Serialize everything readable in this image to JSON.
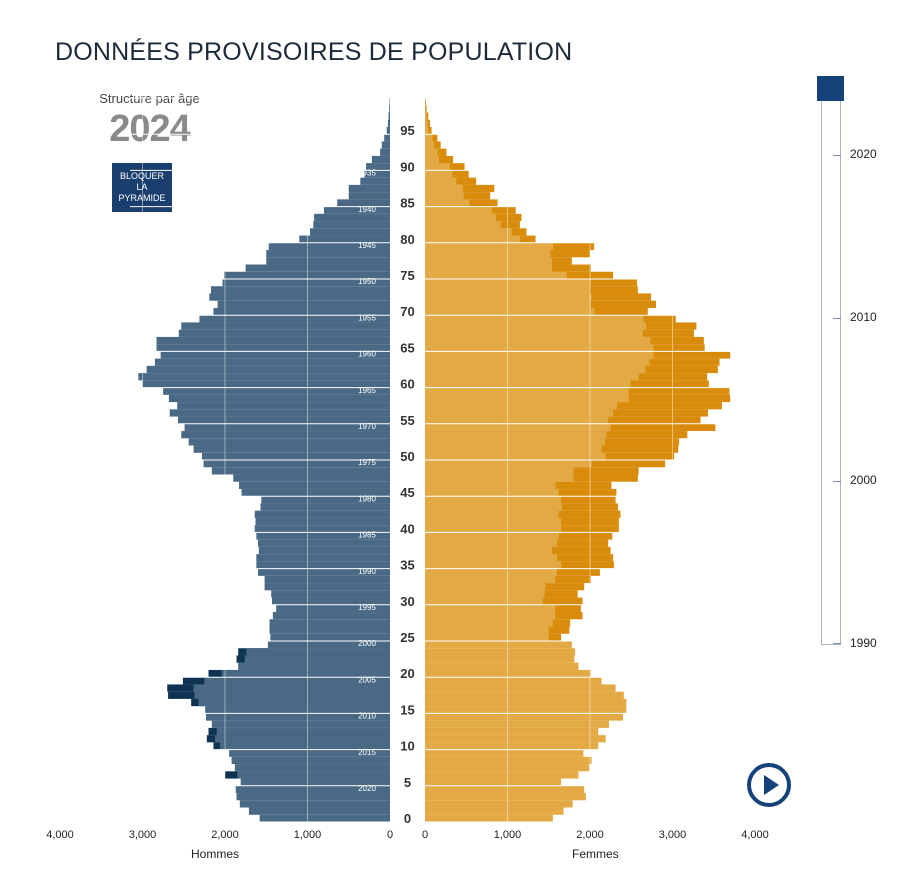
{
  "title": "DONNÉES PROVISOIRES DE POPULATION",
  "subtitle": "Structure par âge",
  "year": "2024",
  "lock_button": [
    "BLOQUER",
    "LA",
    "PYRAMIDE"
  ],
  "play_icon": "play-icon",
  "colors": {
    "men": "#4a6985",
    "men_excess": "#0f3352",
    "women": "#e3a944",
    "women_excess": "#d98c0b",
    "slider_handle": "#15427a"
  },
  "slider": {
    "labels": [
      "2020",
      "2010",
      "2000",
      "1990"
    ]
  },
  "gender_labels": {
    "men": "Hommes",
    "women": "Femmes"
  },
  "chart_data": {
    "type": "bar",
    "title": "Structure par âge 2024",
    "xlabel_left": "Hommes",
    "xlabel_right": "Femmes",
    "xlim": [
      0,
      4000
    ],
    "x_ticks": [
      0,
      1000,
      2000,
      3000,
      4000
    ],
    "x_tick_labels_left": [
      "0",
      "1,000",
      "2,000",
      "3,000",
      "4,000"
    ],
    "x_tick_labels_right": [
      "0",
      "1,000",
      "2,000",
      "3,000",
      "4,000"
    ],
    "age_labels": [
      0,
      5,
      10,
      15,
      20,
      25,
      30,
      35,
      40,
      45,
      50,
      55,
      60,
      65,
      70,
      75,
      80,
      85,
      90,
      95
    ],
    "cohort_labels": [
      2020,
      2015,
      2010,
      2005,
      2000,
      1995,
      1990,
      1985,
      1980,
      1975,
      1970,
      1965,
      1960,
      1955,
      1950,
      1945,
      1940,
      1935
    ],
    "ages": [
      0,
      1,
      2,
      3,
      4,
      5,
      6,
      7,
      8,
      9,
      10,
      11,
      12,
      13,
      14,
      15,
      16,
      17,
      18,
      19,
      20,
      21,
      22,
      23,
      24,
      25,
      26,
      27,
      28,
      29,
      30,
      31,
      32,
      33,
      34,
      35,
      36,
      37,
      38,
      39,
      40,
      41,
      42,
      43,
      44,
      45,
      46,
      47,
      48,
      49,
      50,
      51,
      52,
      53,
      54,
      55,
      56,
      57,
      58,
      59,
      60,
      61,
      62,
      63,
      64,
      65,
      66,
      67,
      68,
      69,
      70,
      71,
      72,
      73,
      74,
      75,
      76,
      77,
      78,
      79,
      80,
      81,
      82,
      83,
      84,
      85,
      86,
      87,
      88,
      89,
      90,
      91,
      92,
      93,
      94,
      95,
      96,
      97,
      98,
      99
    ],
    "series": [
      {
        "name": "Hommes",
        "side": "left",
        "values": [
          1580,
          1710,
          1820,
          1860,
          1870,
          1810,
          1850,
          1880,
          1920,
          1950,
          2060,
          2120,
          2100,
          2160,
          2230,
          2240,
          2320,
          2370,
          2380,
          2250,
          2040,
          1840,
          1760,
          1740,
          1480,
          1450,
          1460,
          1460,
          1420,
          1380,
          1430,
          1440,
          1520,
          1520,
          1600,
          1620,
          1620,
          1590,
          1600,
          1620,
          1640,
          1630,
          1640,
          1570,
          1560,
          1800,
          1830,
          1900,
          2160,
          2260,
          2280,
          2380,
          2440,
          2530,
          2490,
          2570,
          2670,
          2580,
          2680,
          2750,
          3000,
          3050,
          2950,
          2850,
          2780,
          2830,
          2830,
          2560,
          2530,
          2310,
          2140,
          2090,
          2190,
          2170,
          2030,
          2010,
          1750,
          1500,
          1500,
          1470,
          1100,
          970,
          930,
          920,
          800,
          640,
          500,
          500,
          360,
          310,
          290,
          220,
          120,
          100,
          70,
          40,
          25,
          18,
          10,
          5
        ]
      },
      {
        "name": "Hommes excédent",
        "side": "left",
        "values": [
          0,
          0,
          0,
          0,
          0,
          0,
          150,
          0,
          0,
          0,
          80,
          100,
          100,
          0,
          0,
          0,
          90,
          320,
          320,
          260,
          160,
          0,
          100,
          100,
          0,
          0,
          0,
          0,
          0,
          0,
          0,
          0,
          0,
          0,
          0,
          0,
          0,
          0,
          0,
          0,
          0,
          0,
          0,
          0,
          0,
          0,
          0,
          0,
          0,
          0,
          0,
          0,
          0,
          0,
          0,
          0,
          0,
          0,
          0,
          0,
          0,
          0,
          0,
          0,
          0,
          0,
          0,
          0,
          0,
          0,
          0,
          0,
          0,
          0,
          0,
          0,
          0,
          0,
          0,
          0,
          0,
          0,
          0,
          0,
          0,
          0,
          0,
          0,
          0,
          0,
          0,
          0,
          0,
          0,
          0,
          0,
          0,
          0,
          0,
          0
        ]
      },
      {
        "name": "Femmes",
        "side": "right",
        "values": [
          1550,
          1680,
          1790,
          1950,
          1930,
          1650,
          1860,
          1990,
          2020,
          1920,
          2100,
          2190,
          2100,
          2230,
          2400,
          2440,
          2440,
          2410,
          2310,
          2140,
          2010,
          1860,
          1810,
          1820,
          1780,
          1500,
          1500,
          1550,
          1580,
          1580,
          1430,
          1450,
          1460,
          1580,
          1600,
          1650,
          1600,
          1540,
          1600,
          1620,
          1650,
          1650,
          1620,
          1660,
          1650,
          1620,
          1580,
          1800,
          1800,
          2020,
          2190,
          2140,
          2180,
          2200,
          2250,
          2220,
          2280,
          2330,
          2470,
          2470,
          2490,
          2590,
          2670,
          2720,
          2770,
          2770,
          2730,
          2640,
          2680,
          2650,
          2050,
          2010,
          2020,
          2000,
          2010,
          1720,
          1540,
          1540,
          1520,
          1550,
          1150,
          1050,
          920,
          860,
          810,
          540,
          470,
          460,
          380,
          330,
          300,
          170,
          150,
          110,
          90,
          40,
          30,
          20,
          10,
          5
        ]
      },
      {
        "name": "Femmes excédent",
        "side": "right",
        "values": [
          0,
          0,
          0,
          0,
          0,
          0,
          0,
          0,
          0,
          0,
          0,
          0,
          0,
          0,
          0,
          0,
          0,
          0,
          0,
          0,
          0,
          0,
          0,
          0,
          0,
          150,
          250,
          210,
          330,
          310,
          480,
          400,
          470,
          430,
          520,
          640,
          680,
          710,
          620,
          650,
          700,
          700,
          750,
          680,
          660,
          700,
          680,
          780,
          790,
          890,
          830,
          930,
          900,
          980,
          1270,
          1120,
          1150,
          1270,
          1230,
          1220,
          950,
          830,
          880,
          850,
          930,
          620,
          650,
          620,
          610,
          390,
          650,
          790,
          720,
          580,
          560,
          560,
          470,
          240,
          480,
          500,
          190,
          180,
          230,
          310,
          290,
          340,
          320,
          380,
          240,
          200,
          180,
          170,
          110,
          80,
          60,
          40,
          30,
          20,
          10,
          5
        ]
      }
    ]
  }
}
